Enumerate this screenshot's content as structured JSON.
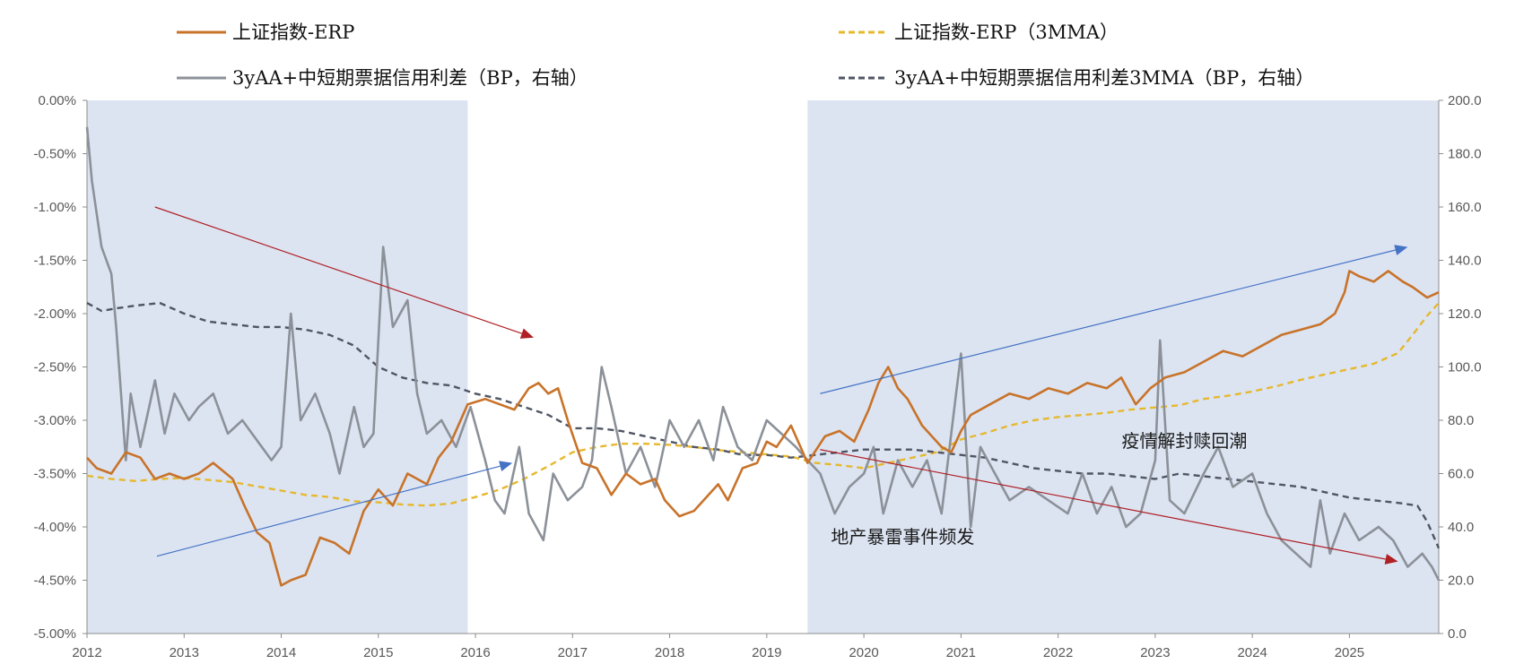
{
  "chart_data": {
    "type": "line",
    "title": "",
    "x_range": [
      2012.0,
      2025.92
    ],
    "x_ticks": [
      "2012",
      "2013",
      "2014",
      "2015",
      "2016",
      "2017",
      "2018",
      "2019",
      "2020",
      "2021",
      "2022",
      "2023",
      "2024",
      "2025"
    ],
    "y_left": {
      "range": [
        -5.0,
        0.0
      ],
      "ticks": [
        "0.00%",
        "-0.50%",
        "-1.00%",
        "-1.50%",
        "-2.00%",
        "-2.50%",
        "-3.00%",
        "-3.50%",
        "-4.00%",
        "-4.50%",
        "-5.00%"
      ]
    },
    "y_right": {
      "range": [
        0.0,
        200.0
      ],
      "ticks": [
        "200.0",
        "180.0",
        "160.0",
        "140.0",
        "120.0",
        "100.0",
        "80.0",
        "60.0",
        "40.0",
        "20.0",
        "0.0"
      ]
    },
    "legend": [
      {
        "label": "上证指数-ERP",
        "color": "#C8732A",
        "dash": "solid"
      },
      {
        "label": "上证指数-ERP（3MMA）",
        "color": "#E6B82E",
        "dash": "dashed"
      },
      {
        "label": "3yAA+中短期票据信用利差（BP，右轴）",
        "color": "#8C9199",
        "dash": "solid"
      },
      {
        "label": "3yAA+中短期票据信用利差3MMA（BP，右轴）",
        "color": "#4F5563",
        "dash": "dashed"
      }
    ],
    "shaded_periods": [
      {
        "x0": 2012.0,
        "x1": 2015.92,
        "color": "#DCE4F2"
      },
      {
        "x0": 2019.42,
        "x1": 2025.92,
        "color": "#DCE4F2"
      }
    ],
    "series": [
      {
        "name": "上证指数-ERP",
        "axis": "left",
        "x": [
          2012.0,
          2012.1,
          2012.25,
          2012.4,
          2012.55,
          2012.7,
          2012.85,
          2013.0,
          2013.15,
          2013.3,
          2013.5,
          2013.62,
          2013.75,
          2013.88,
          2014.0,
          2014.1,
          2014.25,
          2014.4,
          2014.55,
          2014.7,
          2014.85,
          2015.0,
          2015.15,
          2015.3,
          2015.5,
          2015.62,
          2015.75,
          2015.92,
          2016.1,
          2016.25,
          2016.4,
          2016.55,
          2016.65,
          2016.75,
          2016.85,
          2016.95,
          2017.1,
          2017.25,
          2017.4,
          2017.55,
          2017.7,
          2017.85,
          2017.95,
          2018.1,
          2018.25,
          2018.4,
          2018.5,
          2018.6,
          2018.75,
          2018.9,
          2019.0,
          2019.1,
          2019.25,
          2019.42,
          2019.6,
          2019.75,
          2019.9,
          2020.05,
          2020.15,
          2020.25,
          2020.35,
          2020.45,
          2020.6,
          2020.8,
          2020.9,
          2021.0,
          2021.1,
          2021.3,
          2021.5,
          2021.7,
          2021.9,
          2022.1,
          2022.3,
          2022.5,
          2022.65,
          2022.8,
          2022.95,
          2023.1,
          2023.3,
          2023.5,
          2023.7,
          2023.9,
          2024.1,
          2024.3,
          2024.5,
          2024.7,
          2024.85,
          2024.95,
          2025.0,
          2025.1,
          2025.25,
          2025.4,
          2025.55,
          2025.65,
          2025.8,
          2025.92
        ],
        "y": [
          -3.35,
          -3.45,
          -3.5,
          -3.3,
          -3.35,
          -3.55,
          -3.5,
          -3.55,
          -3.5,
          -3.4,
          -3.55,
          -3.8,
          -4.05,
          -4.15,
          -4.55,
          -4.5,
          -4.45,
          -4.1,
          -4.15,
          -4.25,
          -3.85,
          -3.65,
          -3.8,
          -3.5,
          -3.6,
          -3.35,
          -3.2,
          -2.85,
          -2.8,
          -2.85,
          -2.9,
          -2.7,
          -2.65,
          -2.75,
          -2.7,
          -3.0,
          -3.4,
          -3.45,
          -3.7,
          -3.5,
          -3.6,
          -3.55,
          -3.75,
          -3.9,
          -3.85,
          -3.7,
          -3.6,
          -3.75,
          -3.45,
          -3.4,
          -3.2,
          -3.25,
          -3.05,
          -3.4,
          -3.15,
          -3.1,
          -3.2,
          -2.9,
          -2.65,
          -2.5,
          -2.7,
          -2.8,
          -3.05,
          -3.25,
          -3.3,
          -3.1,
          -2.95,
          -2.85,
          -2.75,
          -2.8,
          -2.7,
          -2.75,
          -2.65,
          -2.7,
          -2.6,
          -2.85,
          -2.7,
          -2.6,
          -2.55,
          -2.45,
          -2.35,
          -2.4,
          -2.3,
          -2.2,
          -2.15,
          -2.1,
          -2.0,
          -1.8,
          -1.6,
          -1.65,
          -1.7,
          -1.6,
          -1.7,
          -1.75,
          -1.85,
          -1.8
        ]
      },
      {
        "name": "上证指数-ERP（3MMA）",
        "axis": "left",
        "x": [
          2012.0,
          2012.25,
          2012.5,
          2012.75,
          2013.0,
          2013.25,
          2013.5,
          2013.75,
          2014.0,
          2014.25,
          2014.5,
          2014.75,
          2015.0,
          2015.25,
          2015.5,
          2015.75,
          2016.0,
          2016.25,
          2016.5,
          2016.75,
          2017.0,
          2017.25,
          2017.5,
          2017.75,
          2018.0,
          2018.25,
          2018.5,
          2018.75,
          2019.0,
          2019.25,
          2019.5,
          2019.75,
          2020.0,
          2020.25,
          2020.5,
          2020.75,
          2021.0,
          2021.25,
          2021.5,
          2021.75,
          2022.0,
          2022.25,
          2022.5,
          2022.75,
          2023.0,
          2023.25,
          2023.5,
          2023.75,
          2024.0,
          2024.25,
          2024.5,
          2024.75,
          2025.0,
          2025.25,
          2025.5,
          2025.65,
          2025.8,
          2025.92
        ],
        "y": [
          -3.52,
          -3.55,
          -3.57,
          -3.55,
          -3.54,
          -3.56,
          -3.58,
          -3.62,
          -3.66,
          -3.7,
          -3.72,
          -3.76,
          -3.77,
          -3.79,
          -3.8,
          -3.78,
          -3.72,
          -3.65,
          -3.55,
          -3.43,
          -3.3,
          -3.25,
          -3.22,
          -3.22,
          -3.23,
          -3.25,
          -3.28,
          -3.3,
          -3.32,
          -3.34,
          -3.4,
          -3.42,
          -3.45,
          -3.4,
          -3.35,
          -3.3,
          -3.18,
          -3.12,
          -3.05,
          -3.0,
          -2.97,
          -2.95,
          -2.93,
          -2.9,
          -2.88,
          -2.86,
          -2.8,
          -2.77,
          -2.73,
          -2.68,
          -2.62,
          -2.57,
          -2.52,
          -2.47,
          -2.37,
          -2.2,
          -2.02,
          -1.9
        ]
      },
      {
        "name": "3yAA+中短期票据信用利差（BP，右轴）",
        "axis": "right",
        "x": [
          2012.0,
          2012.05,
          2012.15,
          2012.25,
          2012.3,
          2012.4,
          2012.45,
          2012.55,
          2012.7,
          2012.8,
          2012.9,
          2013.05,
          2013.15,
          2013.3,
          2013.45,
          2013.6,
          2013.7,
          2013.8,
          2013.9,
          2014.0,
          2014.1,
          2014.2,
          2014.35,
          2014.5,
          2014.6,
          2014.75,
          2014.85,
          2014.95,
          2015.05,
          2015.15,
          2015.3,
          2015.4,
          2015.5,
          2015.65,
          2015.8,
          2015.95,
          2016.1,
          2016.2,
          2016.3,
          2016.45,
          2016.55,
          2016.7,
          2016.8,
          2016.95,
          2017.1,
          2017.2,
          2017.3,
          2017.4,
          2017.55,
          2017.7,
          2017.85,
          2018.0,
          2018.15,
          2018.3,
          2018.45,
          2018.55,
          2018.7,
          2018.85,
          2019.0,
          2019.15,
          2019.3,
          2019.42,
          2019.55,
          2019.7,
          2019.85,
          2020.0,
          2020.1,
          2020.2,
          2020.35,
          2020.5,
          2020.65,
          2020.8,
          2020.95,
          2021.0,
          2021.1,
          2021.2,
          2021.35,
          2021.5,
          2021.7,
          2021.9,
          2022.1,
          2022.25,
          2022.4,
          2022.55,
          2022.7,
          2022.85,
          2023.0,
          2023.05,
          2023.15,
          2023.3,
          2023.5,
          2023.65,
          2023.8,
          2024.0,
          2024.15,
          2024.3,
          2024.45,
          2024.6,
          2024.7,
          2024.8,
          2024.95,
          2025.1,
          2025.3,
          2025.45,
          2025.6,
          2025.75,
          2025.85,
          2025.92
        ],
        "y": [
          190,
          170,
          145,
          135,
          115,
          65,
          90,
          70,
          95,
          75,
          90,
          80,
          85,
          90,
          75,
          80,
          75,
          70,
          65,
          70,
          120,
          80,
          90,
          75,
          60,
          85,
          70,
          75,
          145,
          115,
          125,
          90,
          75,
          80,
          70,
          85,
          65,
          50,
          45,
          70,
          45,
          35,
          60,
          50,
          55,
          65,
          100,
          85,
          60,
          70,
          55,
          80,
          70,
          80,
          65,
          85,
          70,
          65,
          80,
          75,
          70,
          65,
          60,
          45,
          55,
          60,
          70,
          45,
          65,
          55,
          65,
          45,
          90,
          105,
          40,
          70,
          60,
          50,
          55,
          50,
          45,
          60,
          45,
          55,
          40,
          45,
          65,
          110,
          50,
          45,
          60,
          70,
          55,
          60,
          45,
          35,
          30,
          25,
          50,
          30,
          45,
          35,
          40,
          35,
          25,
          30,
          25,
          20
        ]
      },
      {
        "name": "3yAA+中短期票据信用利差3MMA（BP，右轴）",
        "axis": "right",
        "x": [
          2012.0,
          2012.15,
          2012.3,
          2012.5,
          2012.75,
          2013.0,
          2013.25,
          2013.5,
          2013.75,
          2014.0,
          2014.25,
          2014.5,
          2014.75,
          2015.0,
          2015.25,
          2015.5,
          2015.75,
          2016.0,
          2016.25,
          2016.5,
          2016.75,
          2017.0,
          2017.25,
          2017.5,
          2017.75,
          2018.0,
          2018.25,
          2018.5,
          2018.75,
          2019.0,
          2019.25,
          2019.5,
          2019.75,
          2020.0,
          2020.25,
          2020.5,
          2020.75,
          2021.0,
          2021.25,
          2021.5,
          2021.75,
          2022.0,
          2022.25,
          2022.5,
          2022.75,
          2023.0,
          2023.25,
          2023.5,
          2023.75,
          2024.0,
          2024.25,
          2024.5,
          2024.75,
          2025.0,
          2025.25,
          2025.5,
          2025.7,
          2025.8,
          2025.92
        ],
        "y": [
          124,
          121,
          122,
          123,
          124,
          120,
          117,
          116,
          115,
          115,
          114,
          112,
          108,
          100,
          96,
          94,
          93,
          90,
          88,
          85,
          82,
          77,
          77,
          76,
          74,
          72,
          70,
          69,
          67,
          67,
          66,
          67,
          68,
          69,
          69,
          69,
          68,
          67,
          66,
          64,
          62,
          61,
          60,
          60,
          59,
          58,
          60,
          59,
          58,
          57,
          56,
          55,
          53,
          51,
          50,
          49,
          48,
          42,
          32
        ]
      }
    ],
    "arrows": [
      {
        "from": [
          2012.7,
          160.0
        ],
        "to": [
          2016.6,
          111.0
        ],
        "color": "#B01F24"
      },
      {
        "from": [
          2012.72,
          29.0
        ],
        "to": [
          2016.38,
          64.0
        ],
        "color": "#4472C4"
      },
      {
        "from": [
          2019.55,
          90.0
        ],
        "to": [
          2025.6,
          145.0
        ],
        "color": "#4472C4"
      },
      {
        "from": [
          2019.55,
          69.0
        ],
        "to": [
          2025.5,
          27.0
        ],
        "color": "#B01F24"
      }
    ],
    "annotations": [
      {
        "text": "疫情解封赎回潮",
        "x": 2023.3,
        "y": 70.0
      },
      {
        "text": "地产暴雷事件频发",
        "x": 2020.4,
        "y": 34.0
      }
    ]
  }
}
